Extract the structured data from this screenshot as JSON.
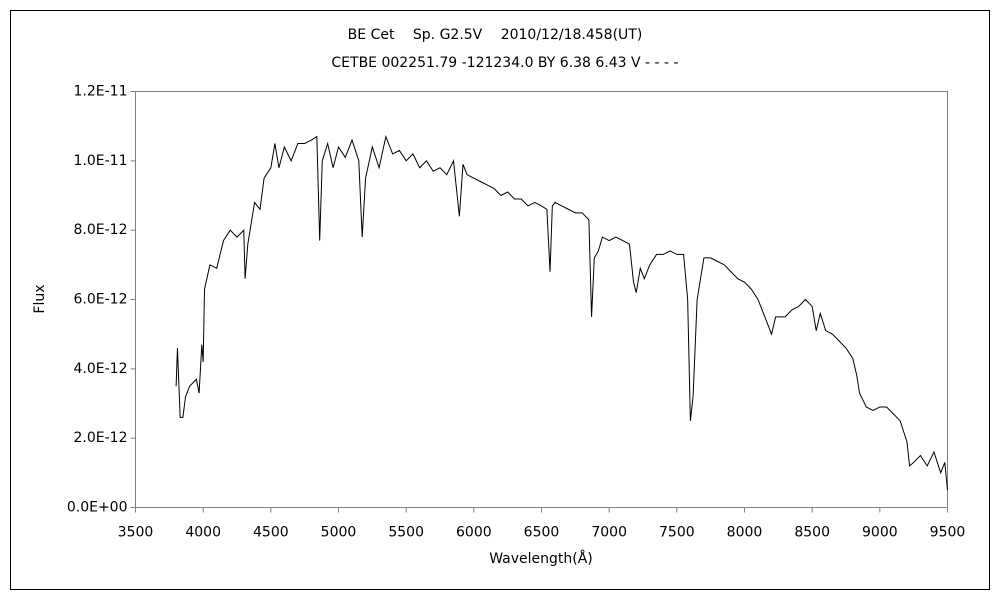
{
  "chart_data": {
    "type": "line",
    "title": "BE Cet　 Sp. G2.5V　 2010/12/18.458(UT)",
    "subtitle": "CETBE 002251.79 -121234.0 BY 6.38 6.43 V - - - -",
    "xlabel": "Wavelength(Å)",
    "ylabel": "Flux",
    "xlim": [
      3500,
      9500
    ],
    "xticks": [
      3500,
      4000,
      4500,
      5000,
      5500,
      6000,
      6500,
      7000,
      7500,
      8000,
      8500,
      9000,
      9500
    ],
    "ylim": [
      0,
      1.2e-11
    ],
    "yticks": [
      {
        "value": 0,
        "label": "0.0E+00"
      },
      {
        "value": 2e-12,
        "label": "2.0E-12"
      },
      {
        "value": 4e-12,
        "label": "4.0E-12"
      },
      {
        "value": 6e-12,
        "label": "6.0E-12"
      },
      {
        "value": 8e-12,
        "label": "8.0E-12"
      },
      {
        "value": 1e-11,
        "label": "1.0E-11"
      },
      {
        "value": 1.2e-11,
        "label": "1.2E-11"
      }
    ],
    "grid": false,
    "series": [
      {
        "color": "#000000",
        "x": [
          3800,
          3810,
          3830,
          3850,
          3870,
          3900,
          3950,
          3970,
          3990,
          4000,
          4010,
          4050,
          4100,
          4150,
          4200,
          4250,
          4300,
          4310,
          4330,
          4380,
          4420,
          4450,
          4500,
          4530,
          4560,
          4600,
          4650,
          4700,
          4750,
          4800,
          4840,
          4861,
          4880,
          4920,
          4960,
          5000,
          5050,
          5100,
          5150,
          5175,
          5200,
          5250,
          5300,
          5350,
          5400,
          5450,
          5500,
          5550,
          5600,
          5650,
          5700,
          5750,
          5800,
          5850,
          5893,
          5920,
          5950,
          6000,
          6050,
          6100,
          6150,
          6200,
          6250,
          6300,
          6350,
          6400,
          6450,
          6500,
          6540,
          6563,
          6580,
          6600,
          6650,
          6700,
          6750,
          6800,
          6850,
          6870,
          6890,
          6920,
          6950,
          7000,
          7050,
          7100,
          7150,
          7180,
          7200,
          7230,
          7260,
          7300,
          7350,
          7400,
          7450,
          7500,
          7550,
          7580,
          7600,
          7620,
          7650,
          7700,
          7750,
          7800,
          7850,
          7900,
          7950,
          8000,
          8050,
          8100,
          8150,
          8200,
          8230,
          8300,
          8350,
          8400,
          8450,
          8500,
          8530,
          8560,
          8600,
          8650,
          8700,
          8750,
          8800,
          8830,
          8850,
          8900,
          8950,
          9000,
          9050,
          9100,
          9150,
          9200,
          9220,
          9250,
          9300,
          9350,
          9400,
          9450,
          9480,
          9500
        ],
        "values": [
          3.5e-12,
          4.6e-12,
          2.6e-12,
          2.6e-12,
          3.2e-12,
          3.5e-12,
          3.7e-12,
          3.3e-12,
          4.7e-12,
          4.2e-12,
          6.3e-12,
          7e-12,
          6.9e-12,
          7.7e-12,
          8e-12,
          7.8e-12,
          8e-12,
          6.6e-12,
          7.6e-12,
          8.8e-12,
          8.6e-12,
          9.5e-12,
          9.8e-12,
          1.05e-11,
          9.8e-12,
          1.04e-11,
          1e-11,
          1.05e-11,
          1.05e-11,
          1.06e-11,
          1.07e-11,
          7.7e-12,
          1e-11,
          1.05e-11,
          9.8e-12,
          1.04e-11,
          1.01e-11,
          1.06e-11,
          1e-11,
          7.8e-12,
          9.5e-12,
          1.04e-11,
          9.8e-12,
          1.07e-11,
          1.02e-11,
          1.03e-11,
          1e-11,
          1.02e-11,
          9.8e-12,
          1e-11,
          9.7e-12,
          9.8e-12,
          9.6e-12,
          1e-11,
          8.4e-12,
          9.9e-12,
          9.6e-12,
          9.5e-12,
          9.4e-12,
          9.3e-12,
          9.2e-12,
          9e-12,
          9.1e-12,
          8.9e-12,
          8.9e-12,
          8.7e-12,
          8.8e-12,
          8.7e-12,
          8.6e-12,
          6.8e-12,
          8.7e-12,
          8.8e-12,
          8.7e-12,
          8.6e-12,
          8.5e-12,
          8.5e-12,
          8.3e-12,
          5.5e-12,
          7.2e-12,
          7.4e-12,
          7.8e-12,
          7.7e-12,
          7.8e-12,
          7.7e-12,
          7.6e-12,
          6.5e-12,
          6.2e-12,
          6.9e-12,
          6.6e-12,
          7e-12,
          7.3e-12,
          7.3e-12,
          7.4e-12,
          7.3e-12,
          7.3e-12,
          6e-12,
          2.5e-12,
          3.2e-12,
          6e-12,
          7.2e-12,
          7.2e-12,
          7.1e-12,
          7e-12,
          6.8e-12,
          6.6e-12,
          6.5e-12,
          6.3e-12,
          6e-12,
          5.5e-12,
          5e-12,
          5.5e-12,
          5.5e-12,
          5.7e-12,
          5.8e-12,
          6e-12,
          5.8e-12,
          5.1e-12,
          5.6e-12,
          5.1e-12,
          5e-12,
          4.8e-12,
          4.6e-12,
          4.3e-12,
          3.8e-12,
          3.3e-12,
          2.9e-12,
          2.8e-12,
          2.9e-12,
          2.9e-12,
          2.7e-12,
          2.5e-12,
          1.9e-12,
          1.2e-12,
          1.3e-12,
          1.5e-12,
          1.2e-12,
          1.6e-12,
          1e-12,
          1.3e-12,
          5e-13
        ]
      }
    ]
  }
}
